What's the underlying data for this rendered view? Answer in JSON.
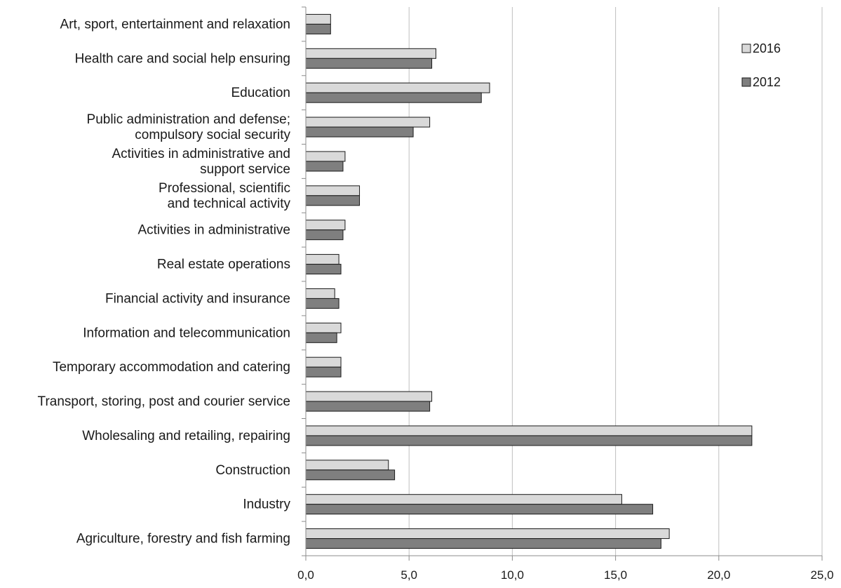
{
  "chart_data": {
    "type": "bar",
    "orientation": "horizontal",
    "categories": [
      "Art, sport, entertainment and relaxation",
      "Health care and social help ensuring",
      "Education",
      "Public administration and defense; compulsory social security",
      "Activities in administrative and support service",
      "Professional, scientific and technical activity",
      "Activities in administrative",
      "Real estate operations",
      "Financial activity and insurance",
      "Information and telecommunication",
      "Temporary accommodation and catering",
      "Transport, storing, post and courier service",
      "Wholesaling and retailing, repairing",
      "Construction",
      "Industry",
      "Agriculture, forestry and fish farming"
    ],
    "category_lines": [
      [
        "Art, sport, entertainment and relaxation"
      ],
      [
        "Health care and social help ensuring"
      ],
      [
        "Education"
      ],
      [
        "Public administration and defense;",
        "compulsory social security"
      ],
      [
        "Activities in administrative and",
        "support service"
      ],
      [
        "Professional, scientific",
        "and technical activity"
      ],
      [
        "Activities in administrative"
      ],
      [
        "Real estate operations"
      ],
      [
        "Financial activity and insurance"
      ],
      [
        "Information and telecommunication"
      ],
      [
        "Temporary accommodation and catering"
      ],
      [
        "Transport, storing, post and courier service"
      ],
      [
        "Wholesaling and retailing, repairing"
      ],
      [
        "Construction"
      ],
      [
        "Industry"
      ],
      [
        "Agriculture, forestry and fish farming"
      ]
    ],
    "series": [
      {
        "name": "2016",
        "color": "#d9d9d9",
        "values": [
          1.2,
          6.3,
          8.9,
          6.0,
          1.9,
          2.6,
          1.9,
          1.6,
          1.4,
          1.7,
          1.7,
          6.1,
          21.6,
          4.0,
          15.3,
          17.6
        ]
      },
      {
        "name": "2012",
        "color": "#7f7f7f",
        "values": [
          1.2,
          6.1,
          8.5,
          5.2,
          1.8,
          2.6,
          1.8,
          1.7,
          1.6,
          1.5,
          1.7,
          6.0,
          21.6,
          4.3,
          16.8,
          17.2
        ]
      }
    ],
    "x_ticks": [
      "0,0",
      "5,0",
      "10,0",
      "15,0",
      "20,0",
      "25,0"
    ],
    "xlim": [
      0,
      25
    ],
    "grid": true,
    "legend_position": "top-right",
    "title": "",
    "xlabel": "",
    "ylabel": ""
  }
}
